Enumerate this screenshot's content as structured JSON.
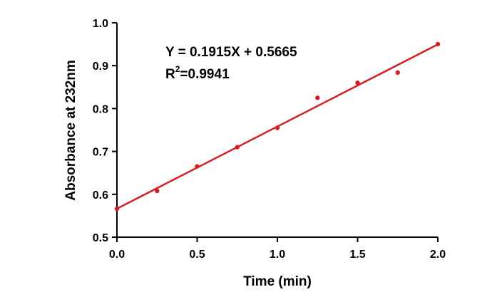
{
  "chart_data": {
    "type": "scatter",
    "xlabel": "Time (min)",
    "ylabel": "Absorbance at 232nm",
    "xlim": [
      0.0,
      2.0
    ],
    "ylim": [
      0.5,
      1.0
    ],
    "x_ticks": [
      "0.0",
      "0.5",
      "1.0",
      "1.5",
      "2.0"
    ],
    "y_ticks": [
      "0.5",
      "0.6",
      "0.7",
      "0.8",
      "0.9",
      "1.0"
    ],
    "grid": false,
    "points": [
      {
        "x": 0.0,
        "y": 0.566
      },
      {
        "x": 0.25,
        "y": 0.608
      },
      {
        "x": 0.5,
        "y": 0.665
      },
      {
        "x": 0.75,
        "y": 0.71
      },
      {
        "x": 1.0,
        "y": 0.755
      },
      {
        "x": 1.25,
        "y": 0.825
      },
      {
        "x": 1.5,
        "y": 0.86
      },
      {
        "x": 1.75,
        "y": 0.884
      },
      {
        "x": 2.0,
        "y": 0.95
      }
    ],
    "fit": {
      "slope": 0.1915,
      "intercept": 0.5665
    },
    "equation_text": "Y = 0.1915X + 0.5665",
    "r2_prefix": "R",
    "r2_exponent": "2",
    "r2_value": "=0.9941",
    "colors": {
      "points": "#d42020",
      "fit_line": "#d42020",
      "axes": "#000000"
    }
  }
}
